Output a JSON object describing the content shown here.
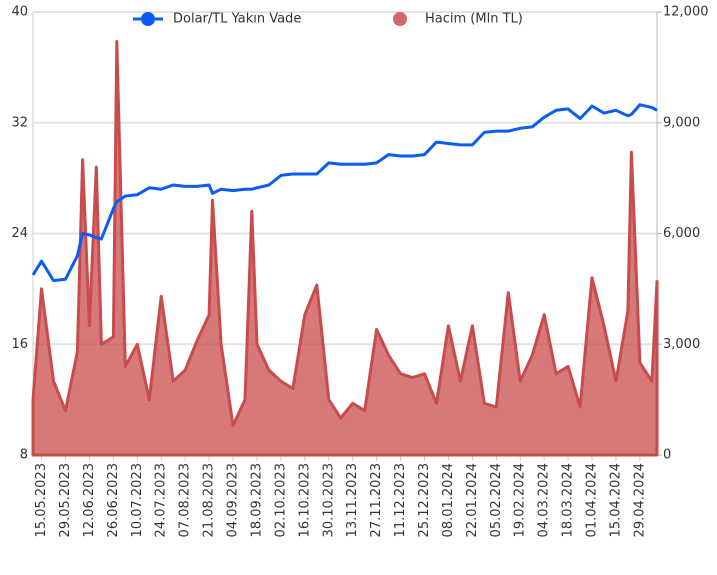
{
  "chart_data": {
    "type": "dual-axis",
    "x": [
      "10.05.2023",
      "15.05.2023",
      "22.05.2023",
      "29.05.2023",
      "05.06.2023",
      "08.06.2023",
      "12.06.2023",
      "16.06.2023",
      "19.06.2023",
      "26.06.2023",
      "28.06.2023",
      "03.07.2023",
      "10.07.2023",
      "17.07.2023",
      "24.07.2023",
      "31.07.2023",
      "07.08.2023",
      "14.08.2023",
      "21.08.2023",
      "23.08.2023",
      "28.08.2023",
      "04.09.2023",
      "11.09.2023",
      "15.09.2023",
      "18.09.2023",
      "25.09.2023",
      "02.10.2023",
      "09.10.2023",
      "16.10.2023",
      "23.10.2023",
      "30.10.2023",
      "06.11.2023",
      "13.11.2023",
      "20.11.2023",
      "27.11.2023",
      "04.12.2023",
      "11.12.2023",
      "18.12.2023",
      "25.12.2023",
      "01.01.2024",
      "08.01.2024",
      "15.01.2024",
      "22.01.2024",
      "29.01.2024",
      "05.02.2024",
      "12.02.2024",
      "19.02.2024",
      "26.02.2024",
      "04.03.2024",
      "11.03.2024",
      "18.03.2024",
      "25.03.2024",
      "01.04.2024",
      "08.04.2024",
      "15.04.2024",
      "22.04.2024",
      "24.04.2024",
      "29.04.2024",
      "06.05.2024",
      "09.05.2024"
    ],
    "series": [
      {
        "name": "Dolar/TL Yakın Vade",
        "type": "line",
        "color": "#0a5cf5",
        "values": [
          21.0,
          22.0,
          20.6,
          20.7,
          22.4,
          24.0,
          23.9,
          23.7,
          23.6,
          25.8,
          26.3,
          26.7,
          26.8,
          27.3,
          27.2,
          27.5,
          27.4,
          27.4,
          27.5,
          26.9,
          27.2,
          27.1,
          27.2,
          27.2,
          27.3,
          27.5,
          28.2,
          28.3,
          28.3,
          28.3,
          29.1,
          29.0,
          29.0,
          29.0,
          29.1,
          29.7,
          29.6,
          29.6,
          29.7,
          30.6,
          30.5,
          30.4,
          30.4,
          31.3,
          31.4,
          31.4,
          31.6,
          31.7,
          32.4,
          32.9,
          33.0,
          32.3,
          33.2,
          32.7,
          32.9,
          32.5,
          32.6,
          33.3,
          33.1,
          32.9
        ]
      },
      {
        "name": "Hacim (Mln TL)",
        "type": "area",
        "axis": "y2",
        "color": "#c94c4c",
        "values": [
          1500,
          4500,
          2000,
          1200,
          2800,
          8000,
          3500,
          7800,
          3000,
          3200,
          11200,
          2400,
          3000,
          1500,
          4300,
          2000,
          2300,
          3100,
          3800,
          6900,
          3000,
          800,
          1500,
          6600,
          3000,
          2300,
          2000,
          1800,
          3800,
          4600,
          1500,
          1000,
          1400,
          1200,
          3400,
          2700,
          2200,
          2100,
          2200,
          1400,
          3500,
          2000,
          3500,
          1400,
          1300,
          4400,
          2000,
          2700,
          3800,
          2200,
          2400,
          1300,
          4800,
          3500,
          2000,
          3900,
          8200,
          2500,
          2000,
          4700
        ]
      }
    ],
    "xlim": [
      "10.05.2023",
      "09.05.2024"
    ],
    "xticks": [
      "15.05.2023",
      "29.05.2023",
      "12.06.2023",
      "26.06.2023",
      "10.07.2023",
      "24.07.2023",
      "07.08.2023",
      "21.08.2023",
      "04.09.2023",
      "18.09.2023",
      "02.10.2023",
      "16.10.2023",
      "30.10.2023",
      "13.11.2023",
      "27.11.2023",
      "11.12.2023",
      "25.12.2023",
      "08.01.2024",
      "22.01.2024",
      "05.02.2024",
      "19.02.2024",
      "04.03.2024",
      "18.03.2024",
      "01.04.2024",
      "15.04.2024",
      "29.04.2024"
    ],
    "ylim": [
      8,
      40
    ],
    "yticks": [
      8,
      16,
      24,
      32,
      40
    ],
    "y2lim": [
      0,
      12000
    ],
    "y2ticks": [
      0,
      {
        "value": 3000,
        "label": "3,000"
      },
      {
        "value": 6000,
        "label": "6,000"
      },
      {
        "value": 9000,
        "label": "9,000"
      },
      {
        "value": 12000,
        "label": "12,000"
      }
    ],
    "grid": true
  }
}
